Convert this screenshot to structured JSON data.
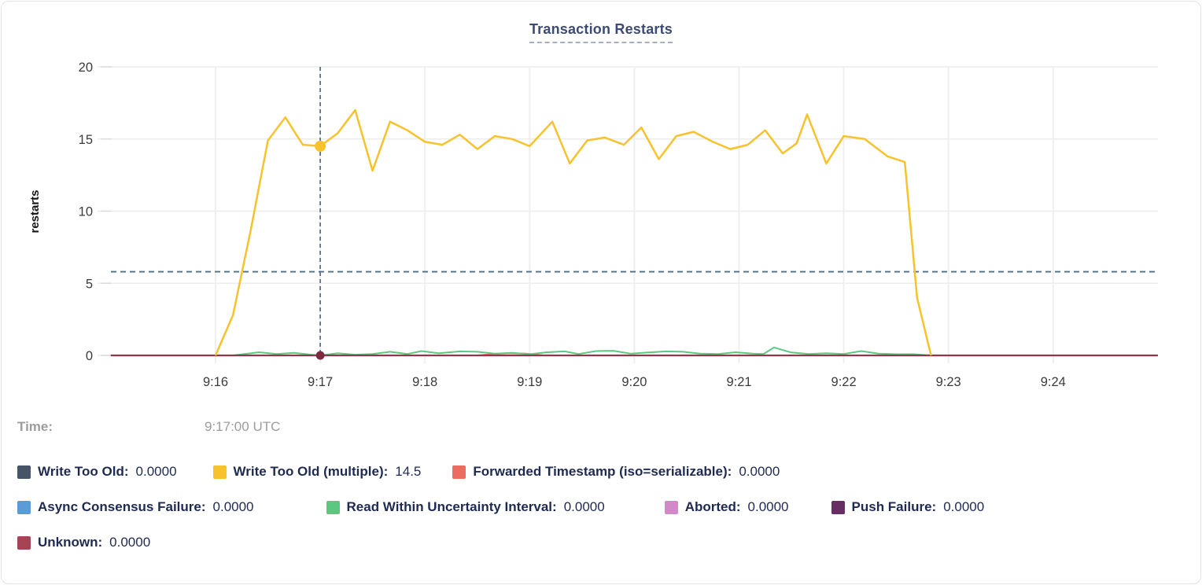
{
  "card": {
    "title": "Transaction Restarts"
  },
  "tooltip": {
    "time_label": "Time:",
    "time_value": "9:17:00 UTC"
  },
  "legend": {
    "rows": [
      {
        "items": [
          {
            "label": "Write Too Old:",
            "value": "0.0000",
            "color": "#475468"
          },
          {
            "label": "Write Too Old (multiple):",
            "value": "14.5",
            "color": "#F8C22D"
          },
          {
            "label": "Forwarded Timestamp (iso=serializable):",
            "value": "0.0000",
            "color": "#ED6C61"
          }
        ]
      },
      {
        "items": [
          {
            "label": "Async Consensus Failure:",
            "value": "0.0000",
            "color": "#5B9BD8"
          },
          {
            "label": "Read Within Uncertainty Interval:",
            "value": "0.0000",
            "color": "#5BC882"
          },
          {
            "label": "Aborted:",
            "value": "0.0000",
            "color": "#D189C9"
          },
          {
            "label": "Push Failure:",
            "value": "0.0000",
            "color": "#662E62"
          }
        ]
      },
      {
        "items": [
          {
            "label": "Unknown:",
            "value": "0.0000",
            "color": "#A64355"
          }
        ]
      }
    ]
  },
  "chart_data": {
    "type": "line",
    "title": "Transaction Restarts",
    "ylabel": "restarts",
    "ylim": [
      0,
      20
    ],
    "yticks": [
      0,
      5,
      10,
      15,
      20
    ],
    "x_unit": "seconds since 9:16:00 UTC (window 9:15 - 9:25)",
    "xticks": [
      {
        "label": "9:16",
        "t": 0
      },
      {
        "label": "9:17",
        "t": 60
      },
      {
        "label": "9:18",
        "t": 120
      },
      {
        "label": "9:19",
        "t": 180
      },
      {
        "label": "9:20",
        "t": 240
      },
      {
        "label": "9:21",
        "t": 300
      },
      {
        "label": "9:22",
        "t": 360
      },
      {
        "label": "9:23",
        "t": 420
      },
      {
        "label": "9:24",
        "t": 480
      }
    ],
    "grid": true,
    "legend_position": "bottom",
    "threshold_dashed_y": 5.8,
    "crosshair": {
      "t": 60,
      "time": "9:17:00 UTC",
      "points": [
        {
          "series": "Write Too Old (multiple)",
          "value": 14.5,
          "color": "#F8C22D",
          "r": 7
        },
        {
          "series": "Unknown",
          "value": 0,
          "color": "#7E2B40",
          "r": 5.5
        }
      ]
    },
    "series": [
      {
        "name": "Write Too Old",
        "color": "#475468",
        "width": 1.8,
        "points": [
          [
            -60,
            0
          ],
          [
            540,
            0
          ]
        ]
      },
      {
        "name": "Async Consensus Failure",
        "color": "#5B9BD8",
        "width": 1.8,
        "points": [
          [
            -60,
            0
          ],
          [
            540,
            0
          ]
        ]
      },
      {
        "name": "Aborted",
        "color": "#D189C9",
        "width": 1.8,
        "points": [
          [
            -60,
            0
          ],
          [
            540,
            0
          ]
        ]
      },
      {
        "name": "Push Failure",
        "color": "#662E62",
        "width": 1.8,
        "points": [
          [
            -60,
            0
          ],
          [
            540,
            0
          ]
        ]
      },
      {
        "name": "Forwarded Timestamp (iso=serializable)",
        "color": "#ED6C61",
        "width": 2,
        "points": [
          [
            -60,
            0
          ],
          [
            150,
            0
          ],
          [
            160,
            0.1
          ],
          [
            168,
            0.16
          ],
          [
            178,
            0.12
          ],
          [
            188,
            0
          ],
          [
            540,
            0
          ]
        ]
      },
      {
        "name": "Read Within Uncertainty Interval",
        "color": "#5DC77F",
        "width": 2,
        "points": [
          [
            -60,
            0
          ],
          [
            10,
            0
          ],
          [
            25,
            0.22
          ],
          [
            35,
            0.1
          ],
          [
            45,
            0.18
          ],
          [
            55,
            0.05
          ],
          [
            60,
            0
          ],
          [
            70,
            0.15
          ],
          [
            80,
            0.05
          ],
          [
            90,
            0.1
          ],
          [
            100,
            0.25
          ],
          [
            110,
            0.1
          ],
          [
            118,
            0.3
          ],
          [
            128,
            0.15
          ],
          [
            140,
            0.28
          ],
          [
            150,
            0.25
          ],
          [
            160,
            0.12
          ],
          [
            170,
            0.18
          ],
          [
            180,
            0.08
          ],
          [
            190,
            0.22
          ],
          [
            200,
            0.28
          ],
          [
            208,
            0.1
          ],
          [
            218,
            0.3
          ],
          [
            228,
            0.32
          ],
          [
            238,
            0.12
          ],
          [
            248,
            0.2
          ],
          [
            258,
            0.28
          ],
          [
            268,
            0.25
          ],
          [
            278,
            0.12
          ],
          [
            288,
            0.1
          ],
          [
            298,
            0.22
          ],
          [
            308,
            0.12
          ],
          [
            314,
            0.1
          ],
          [
            320,
            0.55
          ],
          [
            330,
            0.2
          ],
          [
            340,
            0.1
          ],
          [
            350,
            0.15
          ],
          [
            360,
            0.1
          ],
          [
            370,
            0.3
          ],
          [
            380,
            0.12
          ],
          [
            390,
            0.08
          ],
          [
            400,
            0.08
          ],
          [
            410,
            0
          ]
        ]
      },
      {
        "name": "Unknown",
        "color": "#96344A",
        "width": 2.2,
        "points": [
          [
            -60,
            0
          ],
          [
            540,
            0
          ]
        ]
      },
      {
        "name": "Write Too Old (multiple)",
        "color": "#F8C22D",
        "width": 2.5,
        "points": [
          [
            0,
            0
          ],
          [
            10,
            2.8
          ],
          [
            20,
            8.6
          ],
          [
            30,
            14.9
          ],
          [
            40,
            16.5
          ],
          [
            50,
            14.6
          ],
          [
            60,
            14.5
          ],
          [
            70,
            15.4
          ],
          [
            80,
            17.0
          ],
          [
            90,
            12.8
          ],
          [
            100,
            16.2
          ],
          [
            110,
            15.6
          ],
          [
            120,
            14.8
          ],
          [
            130,
            14.6
          ],
          [
            140,
            15.3
          ],
          [
            150,
            14.3
          ],
          [
            160,
            15.2
          ],
          [
            170,
            15.0
          ],
          [
            180,
            14.5
          ],
          [
            193,
            16.2
          ],
          [
            203,
            13.3
          ],
          [
            213,
            14.9
          ],
          [
            223,
            15.1
          ],
          [
            234,
            14.6
          ],
          [
            244,
            15.8
          ],
          [
            254,
            13.6
          ],
          [
            264,
            15.2
          ],
          [
            274,
            15.5
          ],
          [
            285,
            14.8
          ],
          [
            295,
            14.3
          ],
          [
            305,
            14.6
          ],
          [
            315,
            15.6
          ],
          [
            325,
            14.0
          ],
          [
            333,
            14.7
          ],
          [
            339,
            16.7
          ],
          [
            350,
            13.3
          ],
          [
            360,
            15.2
          ],
          [
            372,
            15.0
          ],
          [
            385,
            13.8
          ],
          [
            395,
            13.4
          ],
          [
            402,
            4.0
          ],
          [
            410,
            0
          ]
        ]
      }
    ]
  },
  "colors": {
    "grid": "#ececec",
    "crosshair": "#4f6e8c",
    "title": "#3c4a76",
    "legend_text": "#1e2a52",
    "time_text": "#9c9c9c"
  }
}
